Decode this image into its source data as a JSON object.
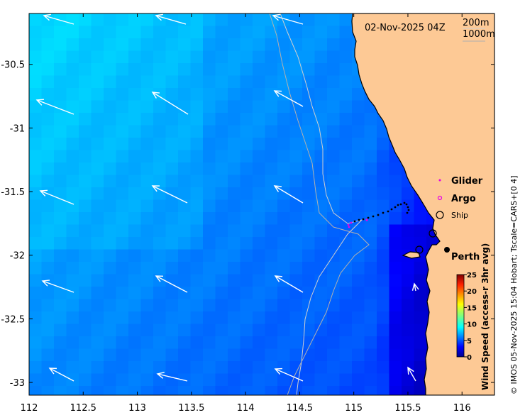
{
  "map": {
    "timestamp": "02-Nov-2025 04Z",
    "contours": [
      "200m",
      "1000m"
    ],
    "lon_ticks": [
      "112",
      "112.5",
      "113",
      "113.5",
      "114",
      "114.5",
      "115",
      "115.5",
      "116"
    ],
    "lat_ticks": [
      "-30.5",
      "-31",
      "-31.5",
      "-32",
      "-32.5",
      "-33"
    ],
    "lon_range": [
      112,
      116.3
    ],
    "lat_range": [
      -33.1,
      -30.1
    ],
    "city_label": "Perth",
    "legend": {
      "glider": "Glider",
      "argo": "Argo",
      "ship": "Ship"
    },
    "colorbar": {
      "label": "Wind Speed (access-r 3hr avg)",
      "ticks": [
        "0",
        "5",
        "10",
        "15",
        "20",
        "25"
      ],
      "range": [
        0,
        25
      ]
    },
    "credit": "© IMOS 05-Nov-2025 15:04 Hobart; Tscale=CARS+[0 4]",
    "colors": {
      "land": "#fdc995",
      "glider": "#e600e6",
      "argo": "#e600e6",
      "arrow": "#ffffff"
    }
  }
}
